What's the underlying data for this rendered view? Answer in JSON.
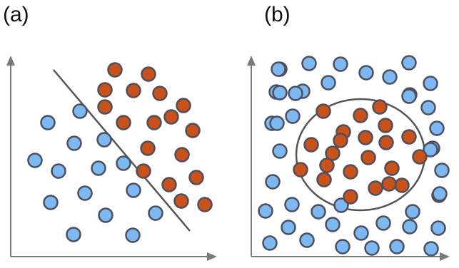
{
  "panels": [
    {
      "id": "a",
      "label": "(a)",
      "boundary": "line",
      "class_counts": {
        "blue": 19,
        "orange": 21
      }
    },
    {
      "id": "b",
      "label": "(b)",
      "boundary": "circle",
      "class_counts": {
        "blue": 44,
        "orange": 22
      }
    }
  ],
  "colors": {
    "blue_fill": "#7cb8f2",
    "orange_fill": "#c9521a",
    "point_stroke": "#4e4e5c",
    "axis": "#7a7a7a",
    "boundary": "#555555"
  }
}
